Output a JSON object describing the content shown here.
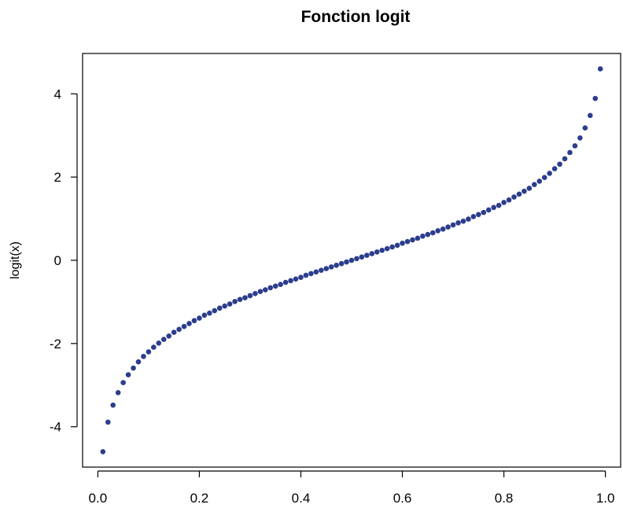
{
  "chart_data": {
    "type": "scatter",
    "title": "Fonction logit",
    "xlabel": "",
    "ylabel": "logit(x)",
    "xlim": [
      -0.03,
      1.03
    ],
    "ylim": [
      -4.97,
      4.97
    ],
    "x_ticks": [
      0.0,
      0.2,
      0.4,
      0.6,
      0.8,
      1.0
    ],
    "x_tick_labels": [
      "0.0",
      "0.2",
      "0.4",
      "0.6",
      "0.8",
      "1.0"
    ],
    "y_ticks": [
      -4,
      -2,
      0,
      2,
      4
    ],
    "y_tick_labels": [
      "-4",
      "-2",
      "0",
      "2",
      "4"
    ],
    "grid": false,
    "point_color": "#2b3d8c",
    "x": [
      0.01,
      0.02,
      0.03,
      0.04,
      0.05,
      0.06,
      0.07,
      0.08,
      0.09,
      0.1,
      0.11,
      0.12,
      0.13,
      0.14,
      0.15,
      0.16,
      0.17,
      0.18,
      0.19,
      0.2,
      0.21,
      0.22,
      0.23,
      0.24,
      0.25,
      0.26,
      0.27,
      0.28,
      0.29,
      0.3,
      0.31,
      0.32,
      0.33,
      0.34,
      0.35,
      0.36,
      0.37,
      0.38,
      0.39,
      0.4,
      0.41,
      0.42,
      0.43,
      0.44,
      0.45,
      0.46,
      0.47,
      0.48,
      0.49,
      0.5,
      0.51,
      0.52,
      0.53,
      0.54,
      0.55,
      0.56,
      0.57,
      0.58,
      0.59,
      0.6,
      0.61,
      0.62,
      0.63,
      0.64,
      0.65,
      0.66,
      0.67,
      0.68,
      0.69,
      0.7,
      0.71,
      0.72,
      0.73,
      0.74,
      0.75,
      0.76,
      0.77,
      0.78,
      0.79,
      0.8,
      0.81,
      0.82,
      0.83,
      0.84,
      0.85,
      0.86,
      0.87,
      0.88,
      0.89,
      0.9,
      0.91,
      0.92,
      0.93,
      0.94,
      0.95,
      0.96,
      0.97,
      0.98,
      0.99
    ],
    "y": [
      -4.6,
      -3.89,
      -3.48,
      -3.18,
      -2.94,
      -2.75,
      -2.59,
      -2.44,
      -2.31,
      -2.2,
      -2.09,
      -1.99,
      -1.9,
      -1.82,
      -1.73,
      -1.66,
      -1.59,
      -1.52,
      -1.45,
      -1.39,
      -1.32,
      -1.27,
      -1.21,
      -1.15,
      -1.1,
      -1.05,
      -0.99,
      -0.94,
      -0.9,
      -0.85,
      -0.8,
      -0.75,
      -0.71,
      -0.66,
      -0.62,
      -0.58,
      -0.53,
      -0.49,
      -0.45,
      -0.41,
      -0.36,
      -0.32,
      -0.28,
      -0.24,
      -0.2,
      -0.16,
      -0.12,
      -0.08,
      -0.04,
      0.0,
      0.04,
      0.08,
      0.12,
      0.16,
      0.2,
      0.24,
      0.28,
      0.32,
      0.36,
      0.41,
      0.45,
      0.49,
      0.53,
      0.58,
      0.62,
      0.66,
      0.71,
      0.75,
      0.8,
      0.85,
      0.9,
      0.94,
      0.99,
      1.05,
      1.1,
      1.15,
      1.21,
      1.27,
      1.32,
      1.39,
      1.45,
      1.52,
      1.59,
      1.66,
      1.73,
      1.82,
      1.9,
      1.99,
      2.09,
      2.2,
      2.31,
      2.44,
      2.59,
      2.75,
      2.94,
      3.18,
      3.48,
      3.89,
      4.6
    ]
  }
}
